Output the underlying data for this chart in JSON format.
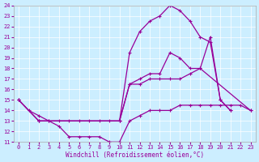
{
  "xlabel": "Windchill (Refroidissement éolien,°C)",
  "bg_color": "#cceeff",
  "line_color": "#990099",
  "xlim": [
    -0.5,
    23.5
  ],
  "ylim": [
    11,
    24
  ],
  "xticks": [
    0,
    1,
    2,
    3,
    4,
    5,
    6,
    7,
    8,
    9,
    10,
    11,
    12,
    13,
    14,
    15,
    16,
    17,
    18,
    19,
    20,
    21,
    22,
    23
  ],
  "yticks": [
    11,
    12,
    13,
    14,
    15,
    16,
    17,
    18,
    19,
    20,
    21,
    22,
    23,
    24
  ],
  "line1_x": [
    0,
    1,
    2,
    3,
    4,
    5,
    6,
    7,
    8,
    9,
    10,
    11,
    12,
    13,
    14,
    15,
    16,
    17,
    18,
    19,
    20,
    21
  ],
  "line1_y": [
    15,
    14,
    13.5,
    13,
    13,
    13,
    13,
    13,
    13,
    13,
    13,
    19.5,
    21.5,
    22.5,
    23,
    24,
    23.5,
    22.5,
    21,
    20.5,
    15,
    14
  ],
  "line2_x": [
    0,
    2,
    10,
    11,
    12,
    13,
    14,
    15,
    16,
    17,
    18,
    19,
    20,
    21
  ],
  "line2_y": [
    15,
    13,
    13,
    16.5,
    17,
    17.5,
    17.5,
    19.5,
    19,
    18,
    18,
    21,
    15,
    14
  ],
  "line3_x": [
    0,
    2,
    10,
    11,
    12,
    13,
    14,
    15,
    16,
    17,
    18,
    23
  ],
  "line3_y": [
    15,
    13,
    13,
    16.5,
    16.5,
    17,
    17,
    17,
    17,
    17.5,
    18,
    14
  ],
  "line4_x": [
    2,
    3,
    4,
    5,
    6,
    7,
    8,
    9,
    10,
    11,
    12,
    13,
    14,
    15,
    16,
    17,
    18,
    19,
    20,
    21,
    22,
    23
  ],
  "line4_y": [
    13,
    13,
    12.5,
    11.5,
    11.5,
    11.5,
    11.5,
    11,
    11,
    13,
    13.5,
    14,
    14,
    14,
    14.5,
    14.5,
    14.5,
    14.5,
    14.5,
    14.5,
    14.5,
    14
  ]
}
